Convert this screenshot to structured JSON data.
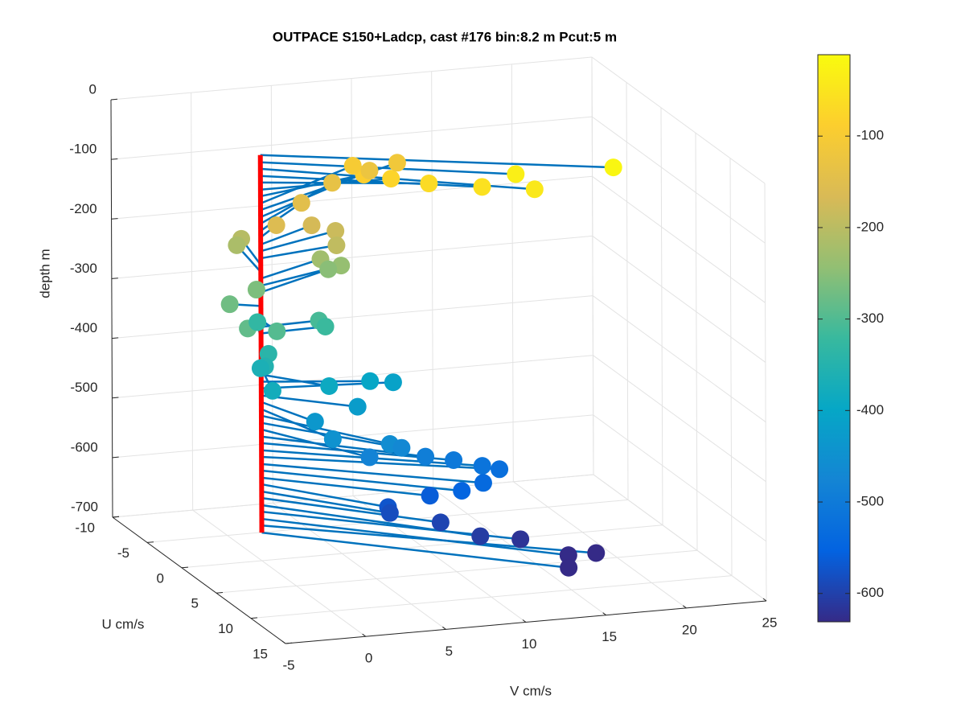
{
  "chart_data": {
    "type": "scatter3",
    "title": "OUTPACE S150+Ladcp, cast #176 bin:8.2 m  Pcut:5 m",
    "xlabel": "V cm/s",
    "ylabel": "U cm/s",
    "zlabel": "depth m",
    "depth": [
      -20,
      -32,
      -43,
      -55,
      -66,
      -78,
      -89,
      -101,
      -112,
      -124,
      -135,
      -147,
      -158,
      -170,
      -181,
      -193,
      -204,
      -216,
      -227,
      -239,
      -250,
      -262,
      -273,
      -285,
      -296,
      -308,
      -319,
      -331,
      -342,
      -354,
      -365,
      -377,
      -388,
      -400,
      -411,
      -423,
      -434,
      -446,
      -457,
      -469,
      -480,
      -492,
      -503,
      -515,
      -526,
      -538,
      -549,
      -561,
      -572,
      -584,
      -595,
      -607,
      -618,
      -630,
      -641,
      -653
    ],
    "u": [
      7.7,
      6.1,
      7.9,
      5.4,
      2.8,
      0.1,
      -2.2,
      -5.2,
      -6.2,
      -6.5,
      -6.1,
      -4.3,
      -1.9,
      -2.6,
      -2.4,
      -1.1,
      -4.9,
      -5.1,
      -2.5,
      -2.3,
      -3.0,
      -1.8,
      -0.8,
      2.5,
      2.3,
      -0.2,
      -0.2,
      -3.3,
      1.3,
      2.2,
      1.3,
      4.2,
      3.1,
      1.6,
      1.0,
      3.5,
      4.3,
      6.4,
      7.0,
      6.6,
      6.6,
      6.1,
      6.0,
      6.2,
      5.9,
      6.8,
      6.7,
      5.8,
      6.0,
      5.8,
      7.1,
      8.9,
      8.9,
      11.2,
      10.1,
      11.0
    ],
    "v": [
      18.7,
      13.3,
      13.7,
      11.5,
      9.3,
      8.1,
      7.4,
      8.0,
      11.2,
      9.6,
      7.1,
      4.4,
      1.8,
      4.3,
      5.7,
      5.2,
      0.9,
      0.7,
      4.8,
      6.0,
      5.5,
      0.5,
      -1.6,
      -1.9,
      0.0,
      3.7,
      4.1,
      1.2,
      -0.1,
      -0.7,
      -0.6,
      -1.1,
      2.9,
      6.1,
      7.8,
      4.5,
      1.5,
      1.7,
      5.0,
      5.9,
      3.9,
      7.6,
      9.4,
      11.1,
      12.3,
      10.9,
      9.6,
      8.0,
      5.3,
      5.5,
      8.1,
      9.8,
      12.3,
      14.3,
      16.5,
      14.4
    ],
    "stem_color": "#0072bd",
    "post_color": "#ff0000",
    "ulim": [
      -10,
      15
    ],
    "uticks": [
      -10,
      -5,
      0,
      5,
      10,
      15
    ],
    "vlim": [
      -5,
      25
    ],
    "vticks": [
      -5,
      0,
      5,
      10,
      15,
      20,
      25
    ],
    "zlim": [
      -700,
      0
    ],
    "zticks": [
      0,
      -100,
      -200,
      -300,
      -400,
      -500,
      -600,
      -700
    ],
    "grid": true,
    "colormap": "parula",
    "clim": [
      -631,
      -11
    ],
    "cticks": [
      -100,
      -200,
      -300,
      -400,
      -500,
      -600
    ]
  }
}
